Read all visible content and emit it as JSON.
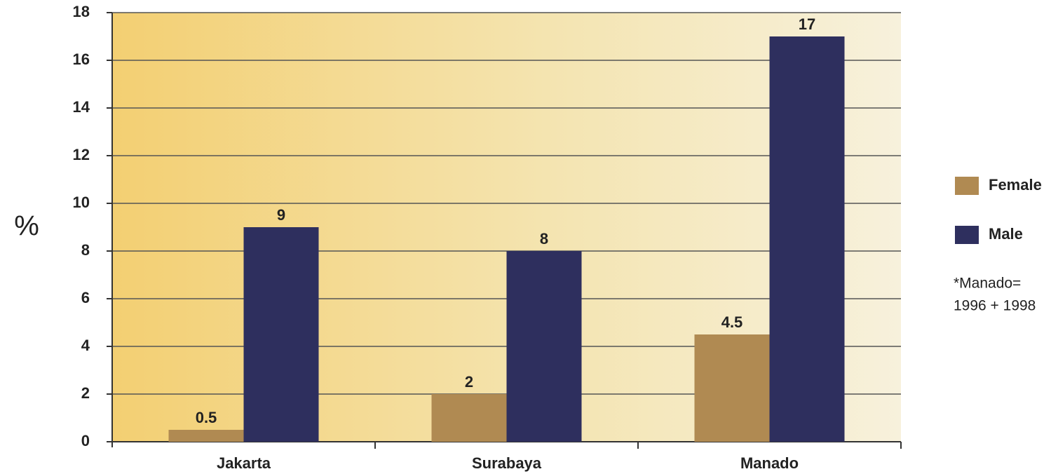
{
  "chart_data": {
    "type": "bar",
    "y_label": "%",
    "categories": [
      "Jakarta",
      "Surabaya",
      "Manado"
    ],
    "series": [
      {
        "name": "Female",
        "color": "#b08a52",
        "values": [
          0.5,
          2,
          4.5
        ]
      },
      {
        "name": "Male",
        "color": "#2e2f5e",
        "values": [
          9,
          8,
          17
        ]
      }
    ],
    "annotation": [
      "*Manado=",
      "1996 + 1998"
    ],
    "ylim": [
      0,
      18
    ],
    "yticks": [
      0,
      2,
      4,
      6,
      8,
      10,
      12,
      14,
      16,
      18
    ],
    "grid": true,
    "legend": "right"
  }
}
